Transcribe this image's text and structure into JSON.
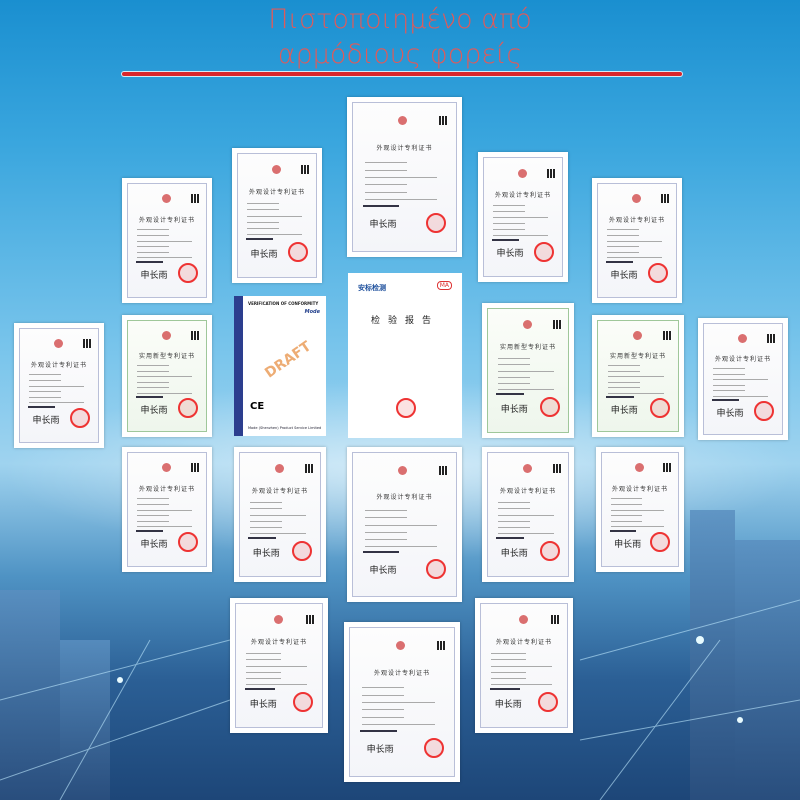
{
  "header": {
    "title_line1": "Πιστοποιημένο από",
    "title_line2": "αρμόδιους φορείς"
  },
  "colors": {
    "title": "#e05a5a",
    "rule": "#d8262c",
    "background": "#3aa6de"
  },
  "certificates": {
    "design_patent_title": "外观设计专利证书",
    "utility_patent_title": "实用新型专利证书",
    "signature": "申长雨",
    "verification": {
      "heading": "VERIFICATION OF CONFORMITY",
      "brand": "Mode",
      "watermark": "DRAFT",
      "mark": "CE",
      "footer": "Mode (Shenzhen) Product Service Limited"
    },
    "report": {
      "title": "检验报告",
      "logo": "安标检测",
      "badge": "MA"
    }
  }
}
